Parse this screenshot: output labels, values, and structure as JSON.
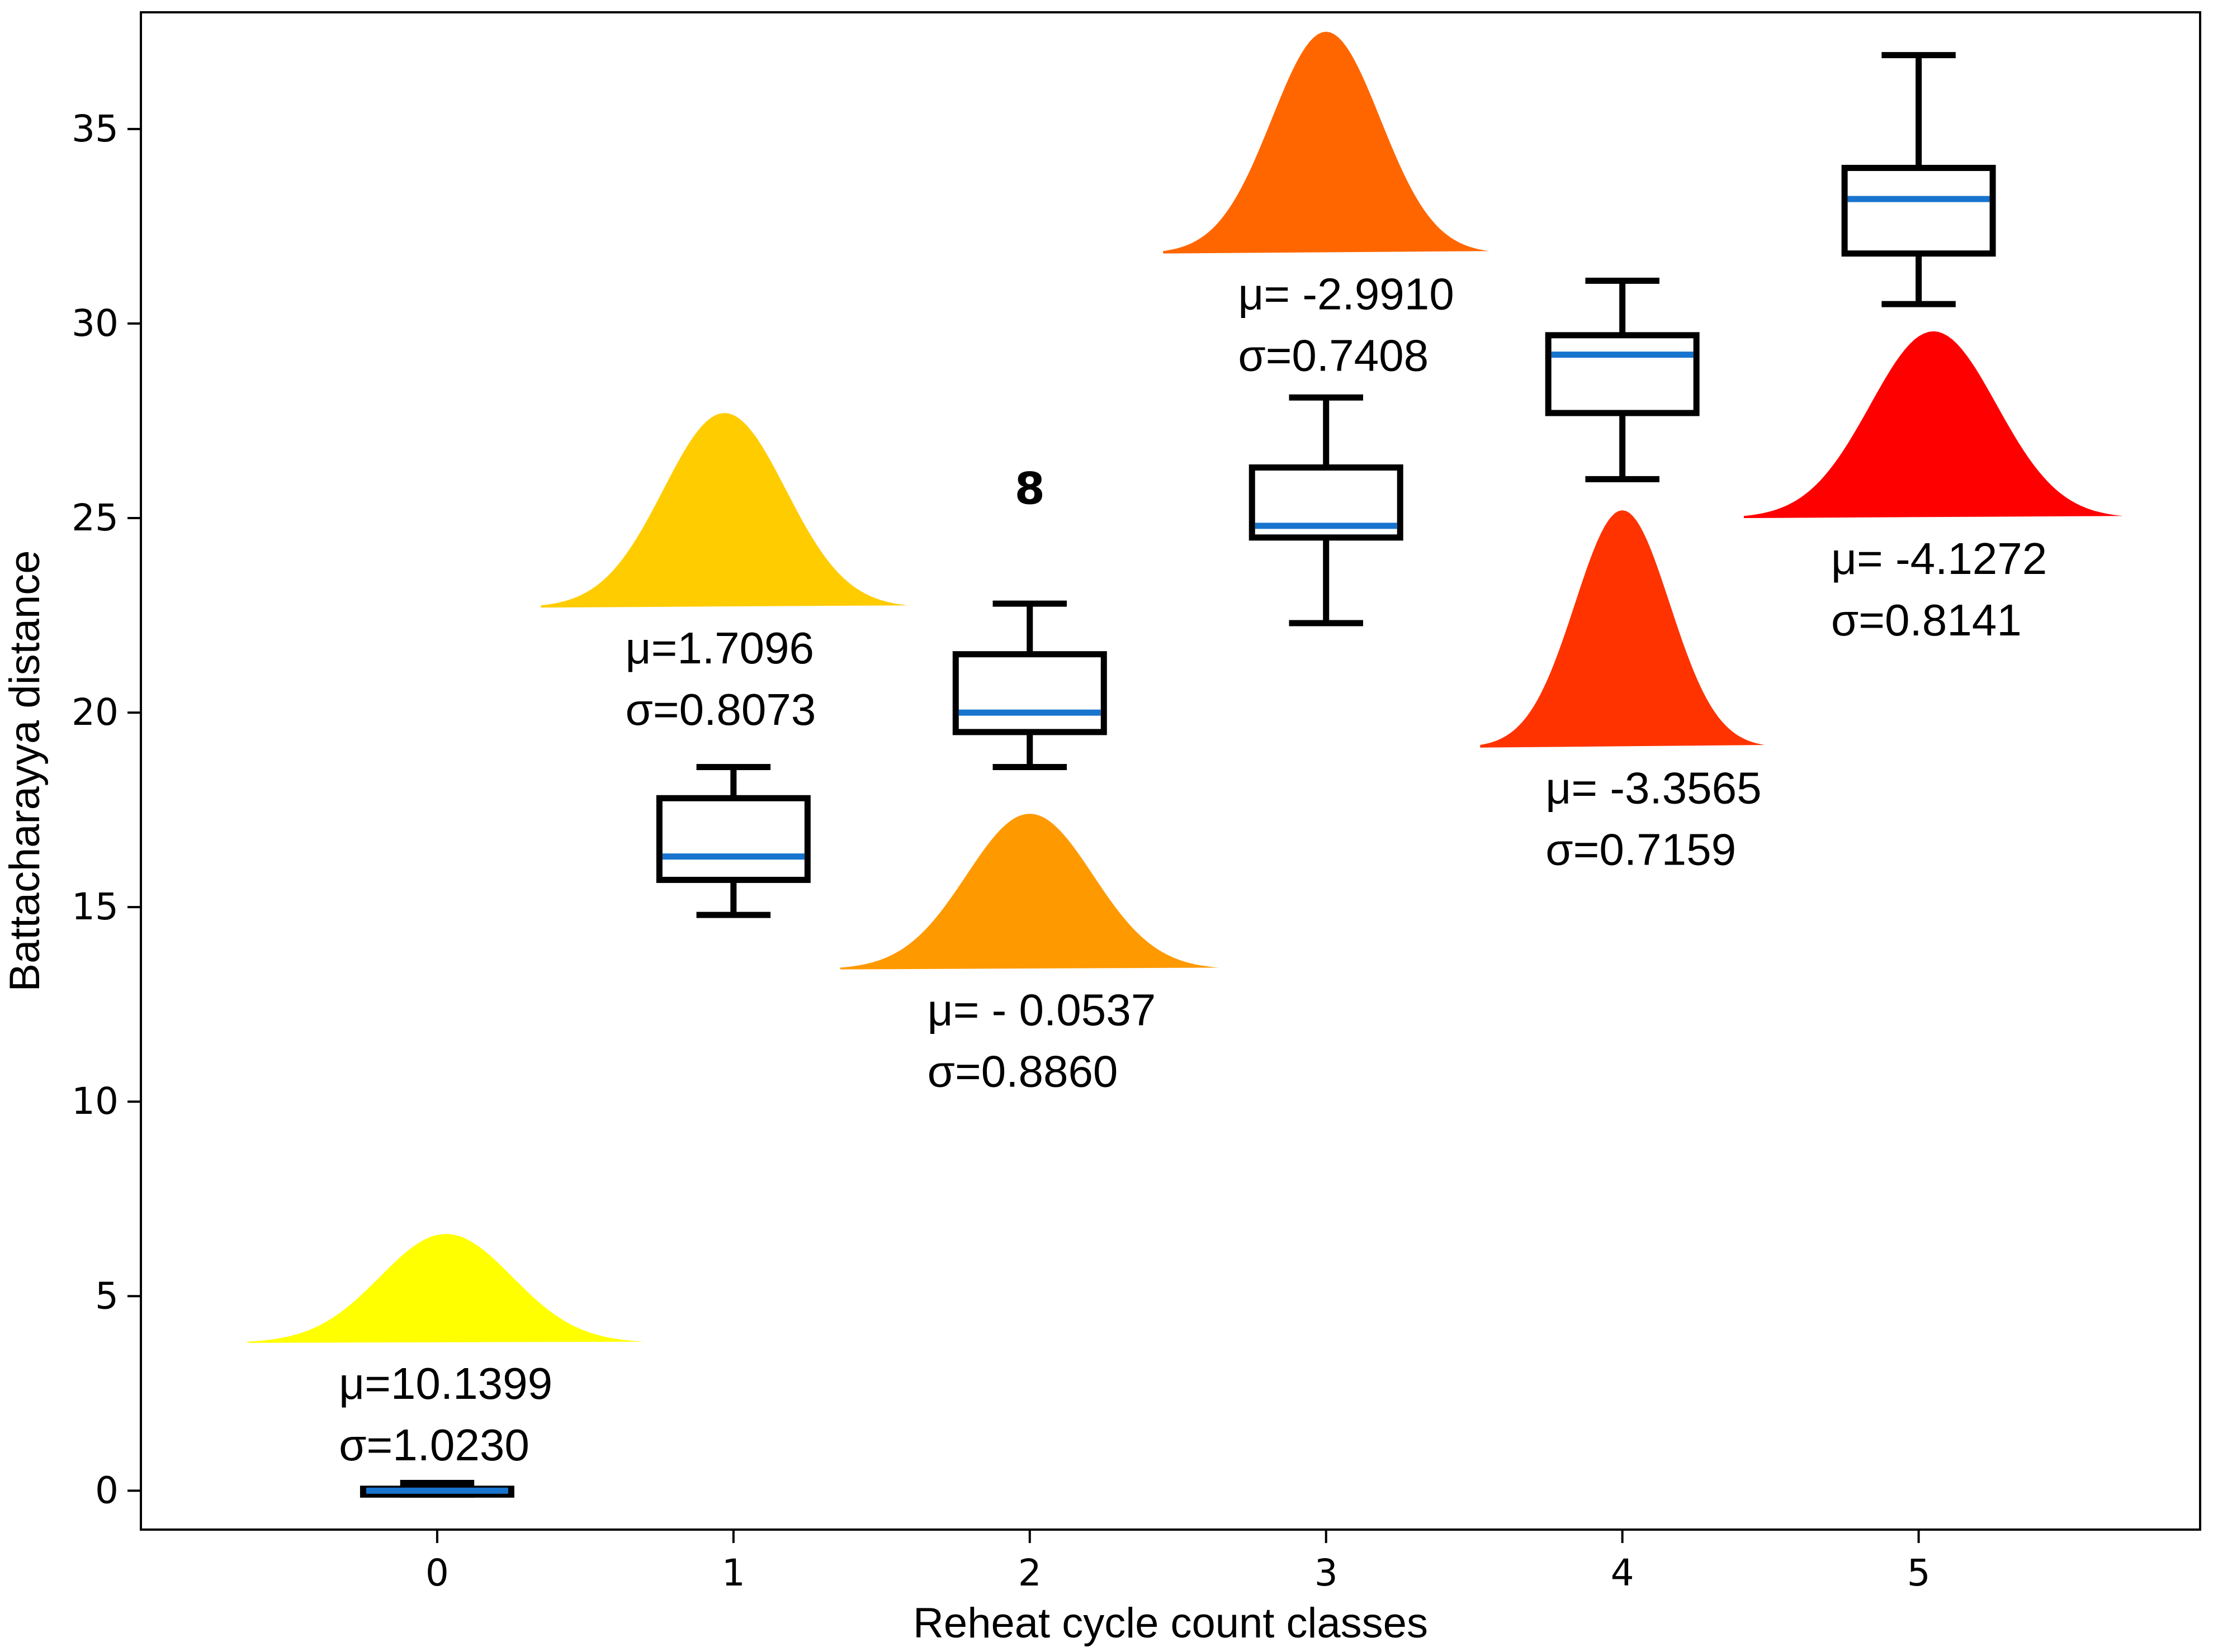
{
  "chart_data": {
    "type": "box",
    "title": "",
    "xlabel": "Reheat cycle count classes",
    "ylabel": "Battacharayya distance",
    "categories": [
      "0",
      "1",
      "2",
      "3",
      "4",
      "5"
    ],
    "x_ticks": [
      "0",
      "1",
      "2",
      "3",
      "4",
      "5"
    ],
    "y_ticks": [
      "0",
      "5",
      "10",
      "15",
      "20",
      "25",
      "30",
      "35"
    ],
    "xlim": [
      -1.0,
      5.95
    ],
    "ylim": [
      -1.0,
      38.0
    ],
    "grid": false,
    "boxes": [
      {
        "category": "0",
        "whisker_low": -0.1,
        "q1": -0.1,
        "median": 0.0,
        "q3": 0.05,
        "whisker_high": 0.2
      },
      {
        "category": "1",
        "whisker_low": 14.8,
        "q1": 15.7,
        "median": 16.3,
        "q3": 17.8,
        "whisker_high": 18.6
      },
      {
        "category": "2",
        "whisker_low": 18.6,
        "q1": 19.5,
        "median": 20.0,
        "q3": 21.5,
        "whisker_high": 22.8
      },
      {
        "category": "3",
        "whisker_low": 22.3,
        "q1": 24.5,
        "median": 24.8,
        "q3": 26.3,
        "whisker_high": 28.1
      },
      {
        "category": "4",
        "whisker_low": 26.0,
        "q1": 27.7,
        "median": 29.2,
        "q3": 29.7,
        "whisker_high": 31.1
      },
      {
        "category": "5",
        "whisker_low": 30.5,
        "q1": 31.8,
        "median": 33.2,
        "q3": 34.0,
        "whisker_high": 36.9
      }
    ],
    "outliers": [
      {
        "category": "2",
        "value": 25.8,
        "label": "8"
      }
    ],
    "distributions": [
      {
        "category": "0",
        "mu_label": "μ=10.1399",
        "sigma_label": "σ=1.0230",
        "color": "#ffff00",
        "center_x": 0.03,
        "base_y": 3.8,
        "peak_y": 6.6,
        "half_width": 0.67
      },
      {
        "category": "1",
        "mu_label": "μ=1.7096",
        "sigma_label": "σ=0.8073",
        "color": "#ffcc00",
        "center_x": 0.97,
        "base_y": 22.7,
        "peak_y": 27.7,
        "half_width": 0.62
      },
      {
        "category": "2",
        "mu_label": "μ= - 0.0537",
        "sigma_label": "σ=0.8860",
        "color": "#ff9900",
        "center_x": 2.0,
        "base_y": 13.4,
        "peak_y": 17.4,
        "half_width": 0.64
      },
      {
        "category": "3",
        "mu_label": "μ= -2.9910",
        "sigma_label": "σ=0.7408",
        "color": "#ff6600",
        "center_x": 3.0,
        "base_y": 31.8,
        "peak_y": 37.5,
        "half_width": 0.55
      },
      {
        "category": "4",
        "mu_label": "μ= -3.3565",
        "sigma_label": "σ=0.7159",
        "color": "#ff3300",
        "center_x": 4.0,
        "base_y": 19.1,
        "peak_y": 25.2,
        "half_width": 0.48
      },
      {
        "category": "5",
        "mu_label": "μ= -4.1272",
        "sigma_label": "σ=0.8141",
        "color": "#ff0000",
        "center_x": 5.05,
        "base_y": 25.0,
        "peak_y": 29.8,
        "half_width": 0.64
      }
    ],
    "colors": {
      "box_edge": "#000000",
      "median_line": "#1874cd",
      "axis": "#000000"
    }
  }
}
